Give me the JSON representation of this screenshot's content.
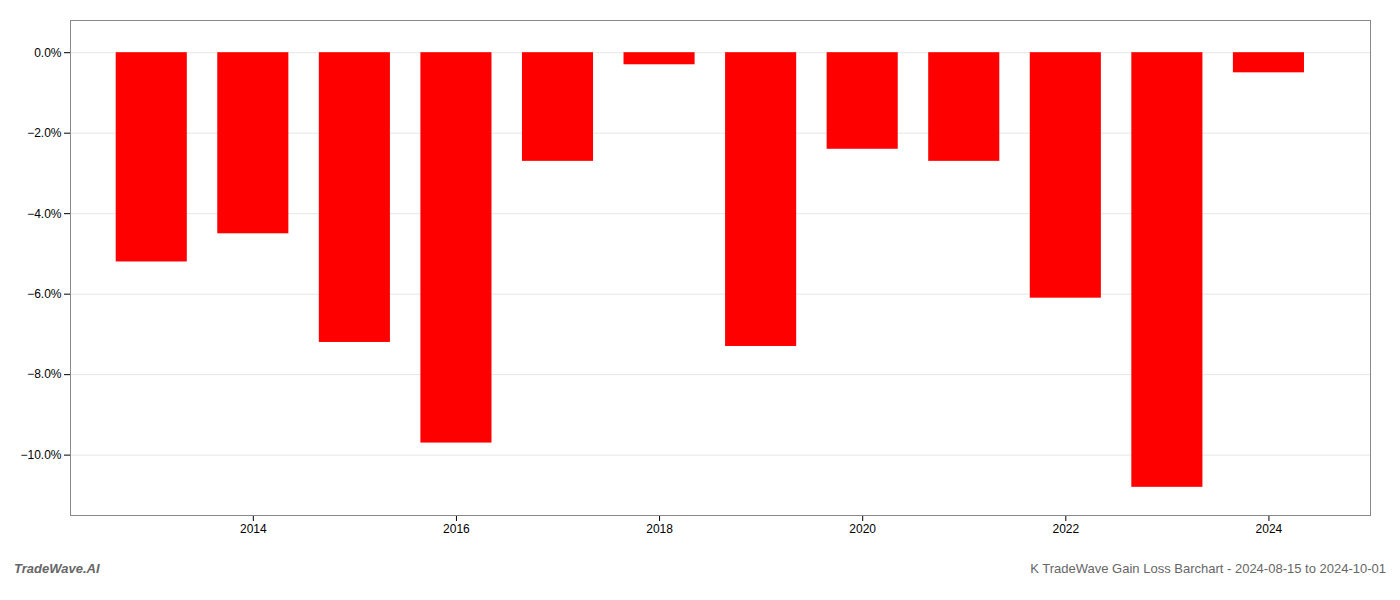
{
  "chart_data": {
    "type": "bar",
    "title": "K TradeWave Gain Loss Barchart - 2024-08-15 to 2024-10-01",
    "annotations": [
      "TradeWave.AI"
    ],
    "x": [
      2013,
      2014,
      2015,
      2016,
      2017,
      2018,
      2019,
      2020,
      2021,
      2022,
      2023,
      2024
    ],
    "values": [
      -5.2,
      -4.5,
      -7.2,
      -9.7,
      -2.7,
      -0.3,
      -7.3,
      -2.4,
      -2.7,
      -6.1,
      -10.8,
      -0.5
    ],
    "color": "#ff0000",
    "xlim": [
      2012.2,
      2025.0
    ],
    "xticks": [
      2014,
      2016,
      2018,
      2020,
      2022,
      2024
    ],
    "ylim": [
      -11.5,
      0.8
    ],
    "yticks": [
      {
        "value": 0.0,
        "label": "0.0%"
      },
      {
        "value": -2.0,
        "label": "−2.0%"
      },
      {
        "value": -4.0,
        "label": "−4.0%"
      },
      {
        "value": -6.0,
        "label": "−6.0%"
      },
      {
        "value": -8.0,
        "label": "−8.0%"
      },
      {
        "value": -10.0,
        "label": "−10.0%"
      }
    ],
    "grid": true
  }
}
